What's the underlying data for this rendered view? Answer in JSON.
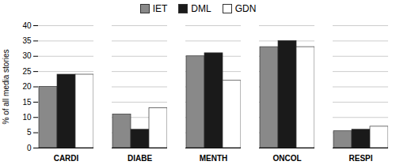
{
  "chart_data": {
    "type": "bar",
    "categories": [
      "CARDI",
      "DIABE",
      "MENTH",
      "ONCOL",
      "RESPI"
    ],
    "series": [
      {
        "name": "IET",
        "color": "#898989",
        "values": [
          20,
          11,
          30,
          33,
          5.5
        ]
      },
      {
        "name": "DML",
        "color": "#1a1a1a",
        "values": [
          24,
          6,
          31,
          35,
          6
        ]
      },
      {
        "name": "GDN",
        "color": "#ffffff",
        "values": [
          24,
          13,
          22,
          33,
          7
        ]
      }
    ],
    "ylabel": "% of all media stories",
    "ylim": [
      0,
      40
    ],
    "yticks": [
      0,
      5,
      10,
      15,
      20,
      25,
      30,
      35,
      40
    ],
    "grid": true,
    "legend": "top"
  }
}
